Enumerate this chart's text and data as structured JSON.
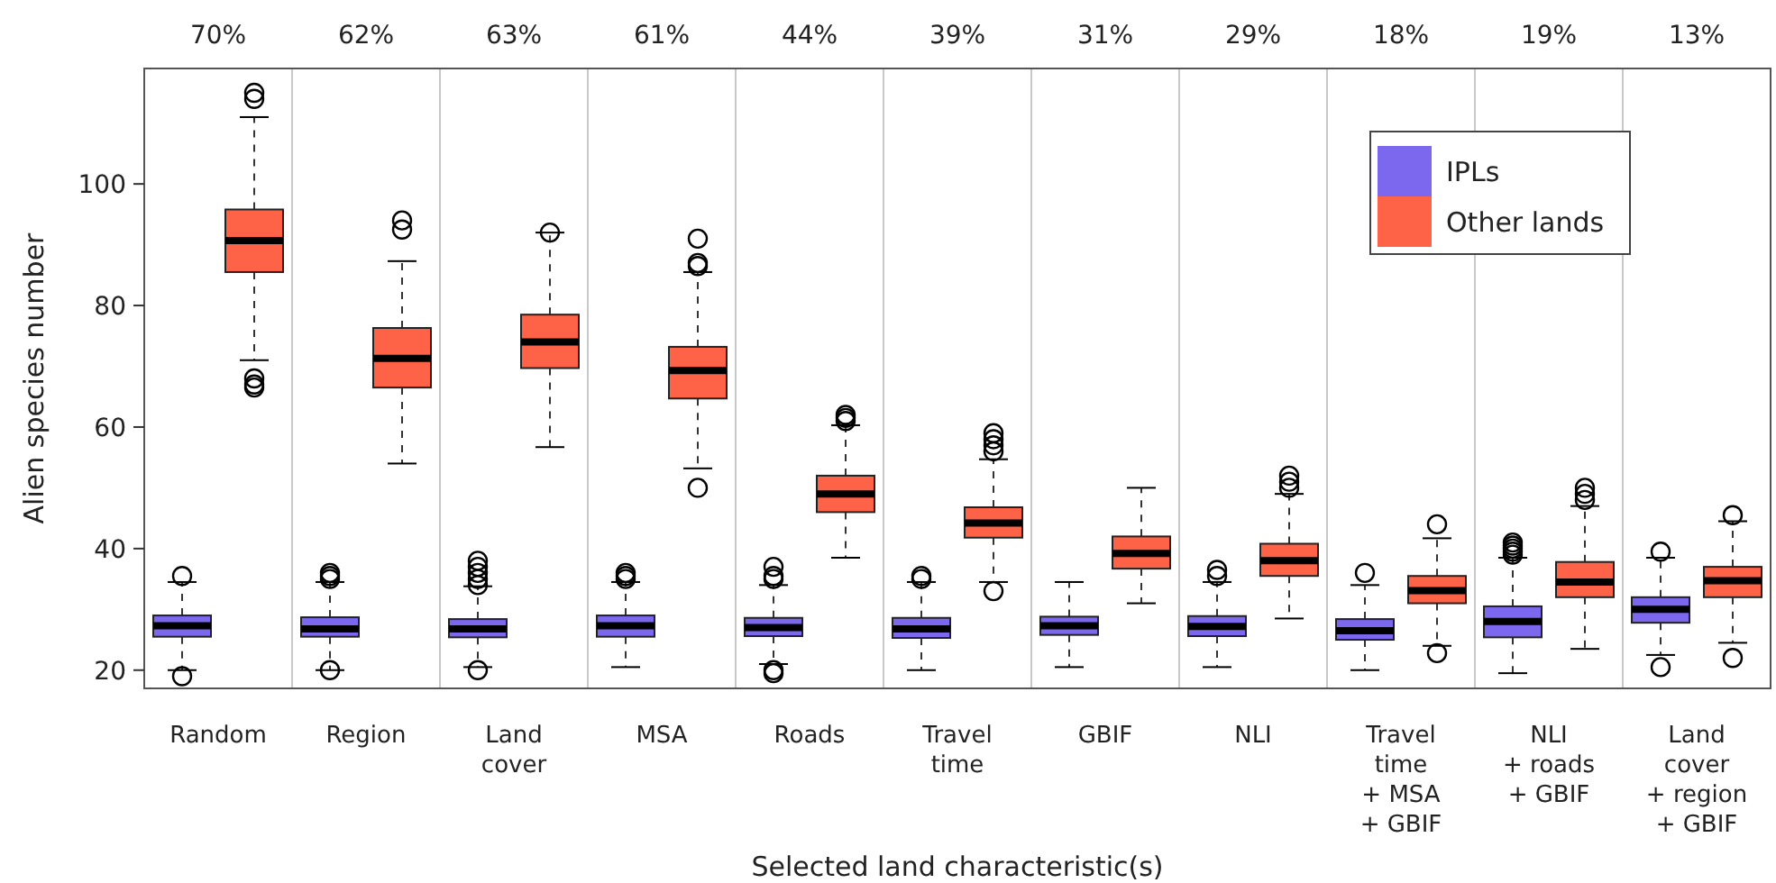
{
  "chart_data": {
    "type": "box",
    "xlabel": "Selected land characteristic(s)",
    "ylabel": "Alien species number",
    "categories": [
      "Random",
      "Region",
      "Land\ncover",
      "MSA",
      "Roads",
      "Travel\ntime",
      "GBIF",
      "NLI",
      "Travel\ntime\n+ MSA\n+ GBIF",
      "NLI\n+ roads\n+ GBIF",
      "Land\ncover\n+ region\n+ GBIF"
    ],
    "annotations": [
      "70%",
      "62%",
      "63%",
      "61%",
      "44%",
      "39%",
      "31%",
      "29%",
      "18%",
      "19%",
      "13%"
    ],
    "ylim": [
      17,
      119
    ],
    "yticks": [
      20,
      40,
      60,
      80,
      100
    ],
    "grid": "x",
    "legend": "top right",
    "marker": "circle",
    "series": [
      {
        "name": "IPLs",
        "color": "#7b68ee",
        "boxes": [
          {
            "low": 20,
            "q1": 25.5,
            "median": 27.3,
            "q3": 29,
            "high": 34.5,
            "outliers": [
              19,
              35.5
            ]
          },
          {
            "low": 20,
            "q1": 25.5,
            "median": 26.8,
            "q3": 28.7,
            "high": 34.5,
            "outliers": [
              20,
              35,
              35.5,
              36
            ]
          },
          {
            "low": 20.5,
            "q1": 25.4,
            "median": 26.8,
            "q3": 28.4,
            "high": 33.8,
            "outliers": [
              20,
              34,
              35,
              36,
              37,
              38
            ]
          },
          {
            "low": 20.5,
            "q1": 25.5,
            "median": 27.3,
            "q3": 29,
            "high": 34.5,
            "outliers": [
              35,
              35.5,
              36
            ]
          },
          {
            "low": 21,
            "q1": 25.6,
            "median": 27,
            "q3": 28.6,
            "high": 34,
            "outliers": [
              19.5,
              20,
              35,
              35.5,
              37
            ]
          },
          {
            "low": 20,
            "q1": 25.3,
            "median": 26.8,
            "q3": 28.6,
            "high": 34.5,
            "outliers": [
              35,
              35.5
            ]
          },
          {
            "low": 20.5,
            "q1": 25.8,
            "median": 27.3,
            "q3": 28.8,
            "high": 34.5
          },
          {
            "low": 20.5,
            "q1": 25.6,
            "median": 27.2,
            "q3": 28.9,
            "high": 34.5,
            "outliers": [
              35.5,
              36.5
            ]
          },
          {
            "low": 20,
            "q1": 25,
            "median": 26.5,
            "q3": 28.4,
            "high": 34,
            "outliers": [
              36
            ]
          },
          {
            "low": 19.5,
            "q1": 25.4,
            "median": 28,
            "q3": 30.5,
            "high": 38.5,
            "outliers": [
              39,
              39.5,
              40,
              40.5,
              41
            ]
          },
          {
            "low": 22.5,
            "q1": 27.8,
            "median": 30,
            "q3": 32,
            "high": 38.5,
            "outliers": [
              20.5,
              39.5
            ]
          }
        ]
      },
      {
        "name": "Other lands",
        "color": "#ff6347",
        "boxes": [
          {
            "low": 71,
            "q1": 85.5,
            "median": 90.7,
            "q3": 95.8,
            "high": 111,
            "outliers": [
              66.5,
              67,
              68,
              114,
              115
            ]
          },
          {
            "low": 54,
            "q1": 66.5,
            "median": 71.3,
            "q3": 76.3,
            "high": 87.3,
            "outliers": [
              92.5,
              94
            ]
          },
          {
            "low": 56.7,
            "q1": 69.7,
            "median": 74,
            "q3": 78.5,
            "high": 92,
            "outliers": [
              92
            ]
          },
          {
            "low": 53.2,
            "q1": 64.7,
            "median": 69.3,
            "q3": 73.2,
            "high": 85.5,
            "outliers": [
              50,
              86.5,
              87,
              91
            ]
          },
          {
            "low": 38.5,
            "q1": 46,
            "median": 49,
            "q3": 52,
            "high": 60.3,
            "outliers": [
              61,
              61.5,
              62
            ]
          },
          {
            "low": 34.5,
            "q1": 41.8,
            "median": 44.2,
            "q3": 46.8,
            "high": 54.7,
            "outliers": [
              33,
              56,
              57,
              58,
              59
            ]
          },
          {
            "low": 31,
            "q1": 36.7,
            "median": 39.2,
            "q3": 42,
            "high": 50
          },
          {
            "low": 28.5,
            "q1": 35.5,
            "median": 38,
            "q3": 40.8,
            "high": 49,
            "outliers": [
              50,
              51,
              52
            ]
          },
          {
            "low": 24,
            "q1": 31,
            "median": 33.1,
            "q3": 35.5,
            "high": 41.7,
            "outliers": [
              22.8,
              44
            ]
          },
          {
            "low": 23.5,
            "q1": 32,
            "median": 34.5,
            "q3": 37.8,
            "high": 47,
            "outliers": [
              48,
              49,
              50
            ]
          },
          {
            "low": 24.5,
            "q1": 32,
            "median": 34.7,
            "q3": 37,
            "high": 44.5,
            "outliers": [
              22,
              45.5
            ]
          }
        ]
      }
    ]
  }
}
